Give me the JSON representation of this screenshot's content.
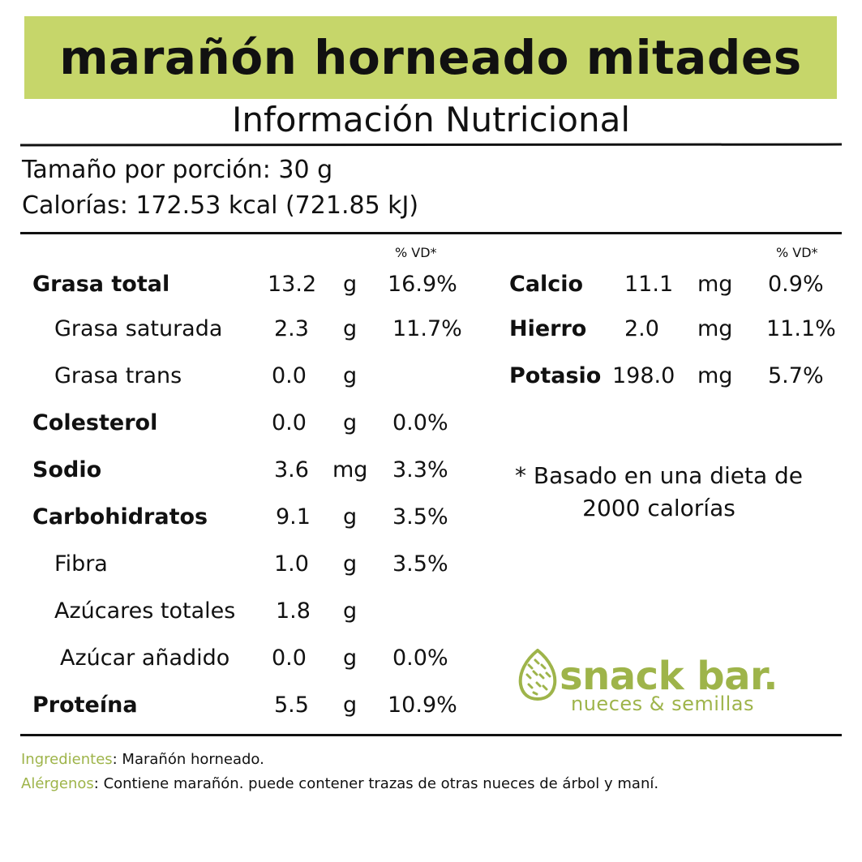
{
  "product_title": "marañón horneado mitades",
  "subtitle": "Información Nutricional",
  "serving": {
    "size": "Tamaño por porción: 30 g",
    "calories": "Calorías: 172.53 kcal (721.85 kJ)"
  },
  "vd_header": "% VD*",
  "left_nutrients": [
    {
      "name": "Grasa total",
      "amount": "13.2",
      "unit": "g",
      "vd": "16.9%"
    },
    {
      "name": "Grasa saturada",
      "amount": "2.3",
      "unit": "g",
      "vd": "11.7%"
    },
    {
      "name": "Grasa trans",
      "amount": "0.0",
      "unit": "g",
      "vd": ""
    },
    {
      "name": "Colesterol",
      "amount": "0.0",
      "unit": "g",
      "vd": "0.0%"
    },
    {
      "name": "Sodio",
      "amount": "3.6",
      "unit": "mg",
      "vd": "3.3%"
    },
    {
      "name": "Carbohidratos",
      "amount": "9.1",
      "unit": "g",
      "vd": "3.5%"
    },
    {
      "name": "Fibra",
      "amount": "1.0",
      "unit": "g",
      "vd": "3.5%"
    },
    {
      "name": "Azúcares totales",
      "amount": "1.8",
      "unit": "g",
      "vd": ""
    },
    {
      "name": "Azúcar añadido",
      "amount": "0.0",
      "unit": "g",
      "vd": "0.0%"
    },
    {
      "name": "Proteína",
      "amount": "5.5",
      "unit": "g",
      "vd": "10.9%"
    }
  ],
  "right_nutrients": [
    {
      "name": "Calcio",
      "amount": "11.1",
      "unit": "mg",
      "vd": "0.9%"
    },
    {
      "name": "Hierro",
      "amount": "2.0",
      "unit": "mg",
      "vd": "11.1%"
    },
    {
      "name": "Potasio",
      "amount": "198.0",
      "unit": "mg",
      "vd": "5.7%"
    }
  ],
  "footnote": {
    "line1": "* Basado en una dieta de",
    "line2": "2000 calorías"
  },
  "logo": {
    "name": "snack bar.",
    "tagline": "nueces & semillas",
    "icon": "almond-icon",
    "color": "#9eb44a"
  },
  "ingredients": {
    "label": "Ingredientes",
    "text": ": Marañón horneado."
  },
  "allergens": {
    "label": "Alérgenos",
    "text": ": Contiene marañón. puede contener trazas de otras nueces de árbol y maní."
  },
  "colors": {
    "title_band": "#c6d66a",
    "accent": "#9eb44a",
    "text": "#111111"
  }
}
